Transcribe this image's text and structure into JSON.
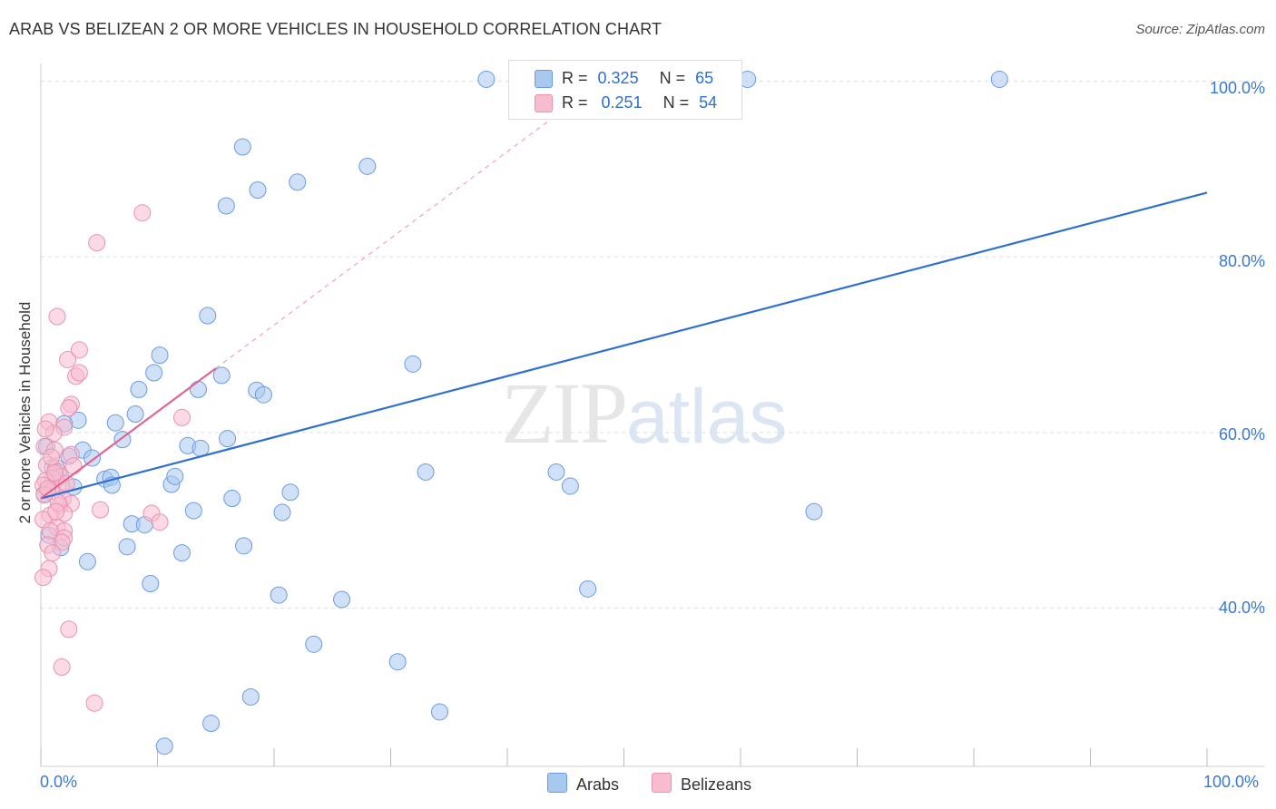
{
  "title": "ARAB VS BELIZEAN 2 OR MORE VEHICLES IN HOUSEHOLD CORRELATION CHART",
  "source": "Source: ZipAtlas.com",
  "watermark": {
    "zip": "ZIP",
    "atlas": "atlas"
  },
  "legend": {
    "arabs": {
      "r_label": "R =",
      "r_value": "0.325",
      "n_label": "N =",
      "n_value": "65"
    },
    "belizeans": {
      "r_label": "R =",
      "r_value": "0.251",
      "n_label": "N =",
      "n_value": "54"
    }
  },
  "bottom_legend": {
    "arabs": "Arabs",
    "belizeans": "Belizeans"
  },
  "colors": {
    "arabs_fill": "#a9c8f0",
    "arabs_stroke": "#6a9be0",
    "arabs_line": "#2f6fd0",
    "belizeans_fill": "#f7bcd0",
    "belizeans_stroke": "#e892b0",
    "belizeans_line": "#e06690",
    "grid": "#dddddd",
    "tick_text": "#3a78d0"
  },
  "chart_data": {
    "type": "scatter",
    "title": "ARAB VS BELIZEAN 2 OR MORE VEHICLES IN HOUSEHOLD CORRELATION CHART",
    "xlabel": "",
    "ylabel": "2 or more Vehicles in Household",
    "xlim": [
      0,
      100
    ],
    "ylim": [
      22,
      102
    ],
    "x_tick_labels": [
      "0.0%",
      "100.0%"
    ],
    "y_ticks": [
      40,
      60,
      80,
      100
    ],
    "y_tick_labels": [
      "40.0%",
      "60.0%",
      "80.0%",
      "100.0%"
    ],
    "series": [
      {
        "name": "Arabs",
        "R": 0.325,
        "N": 65,
        "trend": {
          "x": [
            0,
            100
          ],
          "y": [
            52.5,
            87.3
          ]
        },
        "points": [
          [
            38.2,
            100.2
          ],
          [
            60.6,
            100.2
          ],
          [
            82.2,
            100.2
          ],
          [
            17.3,
            92.5
          ],
          [
            28,
            90.3
          ],
          [
            22,
            88.5
          ],
          [
            18.6,
            87.6
          ],
          [
            15.9,
            85.8
          ],
          [
            14.3,
            73.3
          ],
          [
            10.2,
            68.8
          ],
          [
            31.9,
            67.8
          ],
          [
            9.7,
            66.8
          ],
          [
            15.5,
            66.5
          ],
          [
            8.4,
            64.9
          ],
          [
            13.5,
            64.9
          ],
          [
            18.5,
            64.8
          ],
          [
            19.1,
            64.3
          ],
          [
            8.1,
            62.1
          ],
          [
            3.2,
            61.4
          ],
          [
            6.4,
            61.1
          ],
          [
            7.0,
            59.2
          ],
          [
            16.0,
            59.3
          ],
          [
            12.6,
            58.5
          ],
          [
            13.7,
            58.2
          ],
          [
            3.6,
            58.0
          ],
          [
            4.4,
            57.1
          ],
          [
            0.5,
            58.4
          ],
          [
            1.0,
            56.0
          ],
          [
            1.3,
            54.8
          ],
          [
            2.8,
            53.8
          ],
          [
            5.5,
            54.7
          ],
          [
            6.0,
            54.9
          ],
          [
            6.1,
            54.0
          ],
          [
            11.2,
            54.1
          ],
          [
            11.5,
            55.0
          ],
          [
            33.0,
            55.5
          ],
          [
            44.2,
            55.5
          ],
          [
            45.4,
            53.9
          ],
          [
            21.4,
            53.2
          ],
          [
            16.4,
            52.5
          ],
          [
            13.1,
            51.1
          ],
          [
            20.7,
            50.9
          ],
          [
            66.3,
            51.0
          ],
          [
            7.8,
            49.6
          ],
          [
            8.9,
            49.5
          ],
          [
            0.7,
            48.3
          ],
          [
            7.4,
            47.0
          ],
          [
            17.4,
            47.1
          ],
          [
            12.1,
            46.3
          ],
          [
            1.7,
            46.9
          ],
          [
            4.0,
            45.3
          ],
          [
            9.4,
            42.8
          ],
          [
            46.9,
            42.2
          ],
          [
            20.4,
            41.5
          ],
          [
            25.8,
            41.0
          ],
          [
            23.4,
            35.9
          ],
          [
            30.6,
            33.9
          ],
          [
            18.0,
            29.9
          ],
          [
            34.2,
            28.2
          ],
          [
            14.6,
            26.9
          ],
          [
            10.6,
            24.3
          ],
          [
            2.0,
            61.0
          ],
          [
            1.5,
            55.5
          ],
          [
            2.4,
            57.3
          ],
          [
            0.3,
            53.0
          ]
        ]
      },
      {
        "name": "Belizeans",
        "R": 0.251,
        "N": 54,
        "trend": {
          "x": [
            0,
            15
          ],
          "y": [
            52.5,
            67.3
          ]
        },
        "trend_extension": {
          "x": [
            15,
            45
          ],
          "y": [
            67.3,
            96.9
          ]
        },
        "points": [
          [
            8.7,
            85.0
          ],
          [
            4.8,
            81.6
          ],
          [
            1.4,
            73.2
          ],
          [
            3.3,
            69.4
          ],
          [
            2.3,
            68.3
          ],
          [
            3.0,
            66.4
          ],
          [
            3.3,
            66.8
          ],
          [
            2.6,
            63.2
          ],
          [
            2.4,
            62.8
          ],
          [
            12.1,
            61.7
          ],
          [
            0.7,
            61.2
          ],
          [
            2.0,
            60.6
          ],
          [
            1.1,
            59.9
          ],
          [
            0.3,
            58.4
          ],
          [
            1.2,
            58.0
          ],
          [
            2.6,
            57.5
          ],
          [
            0.5,
            56.3
          ],
          [
            1.3,
            56.0
          ],
          [
            1.7,
            55.0
          ],
          [
            1.0,
            54.8
          ],
          [
            0.4,
            54.5
          ],
          [
            0.2,
            54.0
          ],
          [
            1.8,
            53.8
          ],
          [
            0.9,
            53.3
          ],
          [
            0.3,
            52.9
          ],
          [
            1.9,
            52.5
          ],
          [
            2.6,
            51.9
          ],
          [
            1.6,
            51.7
          ],
          [
            5.1,
            51.2
          ],
          [
            9.5,
            50.8
          ],
          [
            2.0,
            50.8
          ],
          [
            0.8,
            50.6
          ],
          [
            0.2,
            50.1
          ],
          [
            10.2,
            49.8
          ],
          [
            1.4,
            49.2
          ],
          [
            2.0,
            48.8
          ],
          [
            0.8,
            48.8
          ],
          [
            2.0,
            48.0
          ],
          [
            1.8,
            47.5
          ],
          [
            0.6,
            47.2
          ],
          [
            1.0,
            46.3
          ],
          [
            0.7,
            44.5
          ],
          [
            0.2,
            43.5
          ],
          [
            2.4,
            37.6
          ],
          [
            1.8,
            33.3
          ],
          [
            4.6,
            29.2
          ],
          [
            1.2,
            55.4
          ],
          [
            0.6,
            53.6
          ],
          [
            2.2,
            54.2
          ],
          [
            1.5,
            52.0
          ],
          [
            0.9,
            57.2
          ],
          [
            2.8,
            56.2
          ],
          [
            0.4,
            60.4
          ],
          [
            1.3,
            51.0
          ]
        ]
      }
    ]
  }
}
